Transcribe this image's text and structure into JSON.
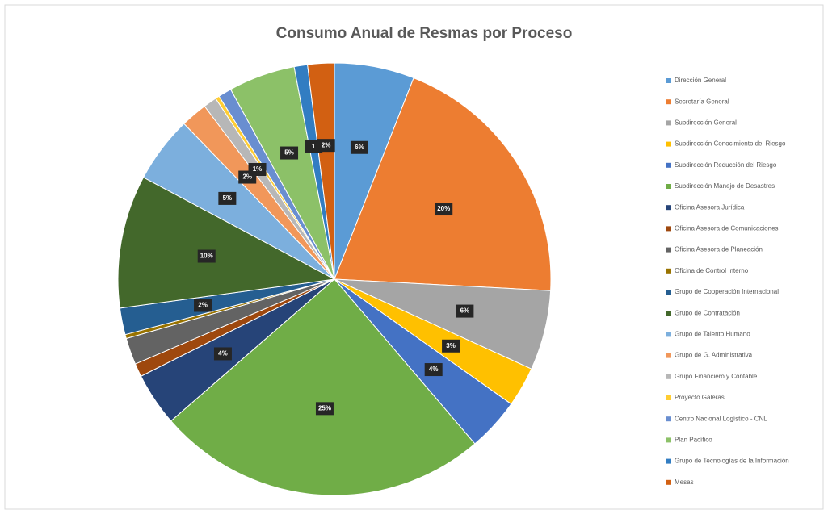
{
  "chart_data": {
    "type": "pie",
    "title": "Consumo Anual de Resmas por Proceso",
    "categories": [
      "Dirección General",
      "Secretaría General",
      "Subdirección General",
      "Subdirección Conocimiento del Riesgo",
      "Subdirección Reducción del Riesgo",
      "Subdirección Manejo de Desastres",
      "Oficina Asesora Jurídica",
      "Oficina Asesora de Comunicaciones",
      "Oficina Asesora de Planeación",
      "Oficina de Control Interno",
      "Grupo de Cooperación Internacional",
      "Grupo de Contratación",
      "Grupo de Talento Humano",
      "Grupo de G. Administrativa",
      "Grupo Financiero y Contable",
      "Proyecto Galeras",
      "Centro Nacional Logístico - CNL",
      "Plan Pacífico",
      "Grupo de Tecnologías de la Información",
      "Mesas"
    ],
    "values": [
      6,
      20,
      6,
      3,
      4,
      25,
      4,
      1,
      2,
      0.3,
      2,
      10,
      5,
      2,
      1,
      0.3,
      1,
      5,
      1,
      2
    ],
    "value_labels": [
      "6%",
      "20%",
      "6%",
      "3%",
      "4%",
      "25%",
      "4%",
      null,
      null,
      null,
      "2%",
      "10%",
      "5%",
      "2%",
      "1%",
      null,
      null,
      "5%",
      "1",
      "2%"
    ],
    "colors": [
      "#5b9bd5",
      "#ed7d31",
      "#a5a5a5",
      "#ffc000",
      "#4472c4",
      "#70ad47",
      "#264478",
      "#9e480e",
      "#636363",
      "#997300",
      "#255e91",
      "#43682b",
      "#7cafdd",
      "#f1975a",
      "#b7b7b7",
      "#ffcd33",
      "#698ed0",
      "#8cc168",
      "#327dc2",
      "#d26012"
    ],
    "legend": "right"
  }
}
